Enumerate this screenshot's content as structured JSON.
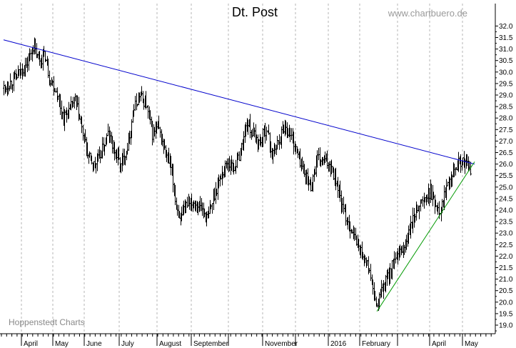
{
  "chart_data": {
    "type": "ohlc",
    "title": "Dt. Post",
    "source_label": "www.chartbuero.de",
    "credit_label": "Hoppenstedt Charts",
    "x_labels": [
      "April",
      "May",
      "June",
      "July",
      "August",
      "September",
      "November",
      "2016",
      "February",
      "April",
      "May"
    ],
    "y_ticks": [
      "19.0",
      "19.5",
      "20.0",
      "20.5",
      "21.0",
      "21.5",
      "22.0",
      "22.5",
      "23.0",
      "23.5",
      "24.0",
      "24.5",
      "25.0",
      "25.5",
      "26.0",
      "26.5",
      "27.0",
      "27.5",
      "28.0",
      "28.5",
      "29.0",
      "29.5",
      "30.0",
      "30.5",
      "31.0",
      "31.5",
      "32.0"
    ],
    "ylim": [
      18.8,
      32.2
    ],
    "grid": "vertical-dashed",
    "colors": {
      "bars": "#000000",
      "resistance_line": "#0000cc",
      "support_line": "#009900",
      "grid": "#b5b5b5"
    },
    "price_path": [
      [
        0,
        29.3
      ],
      [
        12,
        29.8
      ],
      [
        22,
        30.4
      ],
      [
        27,
        31.1
      ],
      [
        32,
        30.5
      ],
      [
        38,
        30.7
      ],
      [
        42,
        29.8
      ],
      [
        48,
        29.2
      ],
      [
        55,
        28.0
      ],
      [
        60,
        28.3
      ],
      [
        66,
        28.8
      ],
      [
        72,
        27.5
      ],
      [
        78,
        26.3
      ],
      [
        84,
        25.9
      ],
      [
        90,
        26.5
      ],
      [
        96,
        27.3
      ],
      [
        102,
        26.6
      ],
      [
        108,
        25.9
      ],
      [
        114,
        26.8
      ],
      [
        120,
        28.4
      ],
      [
        125,
        29.0
      ],
      [
        131,
        28.6
      ],
      [
        137,
        27.3
      ],
      [
        142,
        27.6
      ],
      [
        148,
        26.6
      ],
      [
        154,
        25.8
      ],
      [
        159,
        24.2
      ],
      [
        164,
        23.6
      ],
      [
        170,
        24.5
      ],
      [
        176,
        24.3
      ],
      [
        182,
        24.1
      ],
      [
        188,
        23.6
      ],
      [
        194,
        24.7
      ],
      [
        200,
        25.5
      ],
      [
        206,
        26.1
      ],
      [
        212,
        25.8
      ],
      [
        218,
        26.5
      ],
      [
        224,
        27.8
      ],
      [
        230,
        27.3
      ],
      [
        236,
        26.9
      ],
      [
        242,
        27.6
      ],
      [
        247,
        26.4
      ],
      [
        253,
        27.0
      ],
      [
        259,
        27.7
      ],
      [
        265,
        27.2
      ],
      [
        271,
        26.4
      ],
      [
        277,
        25.6
      ],
      [
        283,
        25.0
      ],
      [
        289,
        26.2
      ],
      [
        295,
        26.1
      ],
      [
        301,
        26.0
      ],
      [
        307,
        25.2
      ],
      [
        313,
        23.9
      ],
      [
        319,
        23.3
      ],
      [
        325,
        22.6
      ],
      [
        331,
        22.0
      ],
      [
        337,
        21.4
      ],
      [
        341,
        20.2
      ],
      [
        344,
        19.8
      ],
      [
        348,
        20.5
      ],
      [
        353,
        21.0
      ],
      [
        358,
        21.6
      ],
      [
        364,
        22.0
      ],
      [
        370,
        22.5
      ],
      [
        376,
        23.4
      ],
      [
        382,
        24.2
      ],
      [
        388,
        24.5
      ],
      [
        393,
        24.8
      ],
      [
        398,
        24.2
      ],
      [
        403,
        24.0
      ],
      [
        409,
        25.3
      ],
      [
        415,
        25.9
      ],
      [
        421,
        26.1
      ],
      [
        426,
        26.0
      ],
      [
        430,
        25.7
      ]
    ],
    "resistance_line": {
      "from": [
        0,
        31.4
      ],
      "to": [
        434,
        26.0
      ]
    },
    "support_line": {
      "from": [
        344,
        19.6
      ],
      "to": [
        434,
        26.1
      ]
    }
  }
}
